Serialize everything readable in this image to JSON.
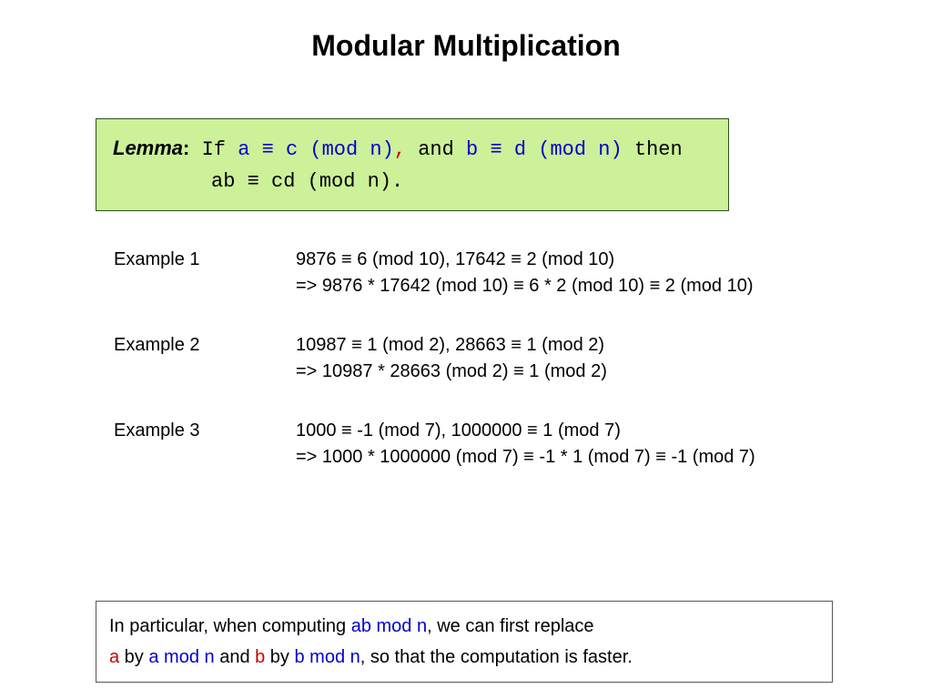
{
  "title": "Modular Multiplication",
  "colors": {
    "background": "#ffffff",
    "text": "#000000",
    "blue": "#0000cc",
    "red": "#cc0000",
    "lemma_bg": "#ccf199",
    "lemma_border": "#2e4f1f",
    "note_border": "#555555"
  },
  "fonts": {
    "title_family": "Verdana",
    "title_size_pt": 24,
    "body_family": "Verdana",
    "body_size_pt": 15,
    "mono_family": "Courier New",
    "mono_size_pt": 16
  },
  "lemma": {
    "label": "Lemma",
    "colon": ":",
    "if_text": " If ",
    "cond1": "a ≡ c (mod n)",
    "sep": ", ",
    "and_text": "and ",
    "cond2": "b ≡ d (mod n)",
    "then_text": " then",
    "conclusion": "ab ≡ cd (mod n)."
  },
  "examples": [
    {
      "label": "Example 1",
      "line1": "9876 ≡ 6 (mod 10),   17642 ≡ 2 (mod 10)",
      "line2": "=>   9876 * 17642 (mod 10) ≡ 6 * 2 (mod 10) ≡ 2 (mod 10)"
    },
    {
      "label": "Example 2",
      "line1": "10987 ≡ 1 (mod 2),   28663 ≡ 1 (mod 2)",
      "line2": "=>   10987 * 28663 (mod 2) ≡  1 (mod 2)"
    },
    {
      "label": "Example 3",
      "line1": "1000 ≡ -1 (mod 7),  1000000 ≡ 1 (mod 7)",
      "line2": "=>   1000 * 1000000 (mod 7) ≡ -1 * 1 (mod 7) ≡ -1 (mod 7)"
    }
  ],
  "note": {
    "prefix": "In particular, when computing ",
    "t1": "ab mod n",
    "mid1": ", we can first replace",
    "a": "a",
    "by1": " by ",
    "t2": "a mod n",
    "and": " and ",
    "b": "b",
    "by2": " by ",
    "t3": "b mod n",
    "suffix": ", so that the computation is faster."
  }
}
